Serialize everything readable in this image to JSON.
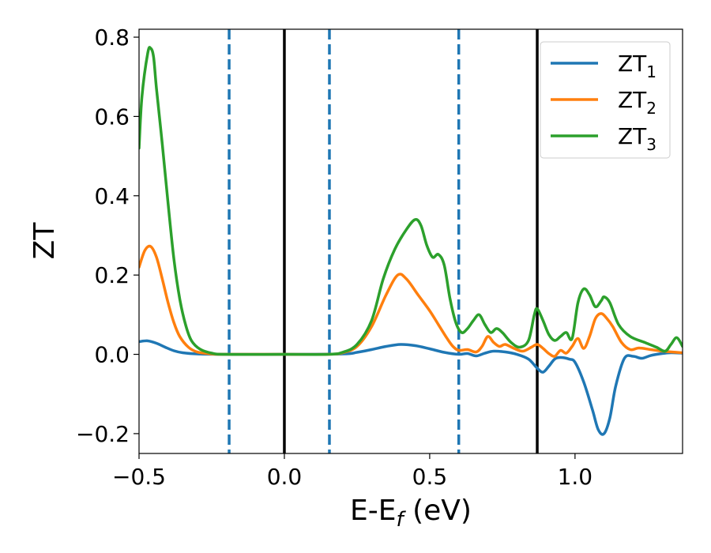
{
  "chart_data": {
    "type": "line",
    "xlabel": "E-E",
    "xlabel_sub": "f",
    "xlabel_unit": " (eV)",
    "ylabel": "ZT",
    "xlim": [
      -0.5,
      1.37
    ],
    "ylim": [
      -0.25,
      0.82
    ],
    "xticks": [
      -0.5,
      0.0,
      0.5,
      1.0
    ],
    "xtick_labels": [
      "−0.5",
      "0.0",
      "0.5",
      "1.0"
    ],
    "yticks": [
      -0.2,
      0.0,
      0.2,
      0.4,
      0.6,
      0.8
    ],
    "ytick_labels": [
      "−0.2",
      "0.0",
      "0.2",
      "0.4",
      "0.6",
      "0.8"
    ],
    "grid": false,
    "legend_position": "top-right",
    "vlines": [
      {
        "x": -0.19,
        "style": "dashed",
        "color": "#1f77b4"
      },
      {
        "x": 0.0,
        "style": "solid",
        "color": "#000000"
      },
      {
        "x": 0.155,
        "style": "dashed",
        "color": "#1f77b4"
      },
      {
        "x": 0.6,
        "style": "dashed",
        "color": "#1f77b4"
      },
      {
        "x": 0.87,
        "style": "solid",
        "color": "#000000"
      }
    ],
    "series": [
      {
        "name": "ZT",
        "name_sub": "1",
        "color": "#1f77b4",
        "points": [
          [
            -0.5,
            0.032
          ],
          [
            -0.47,
            0.034
          ],
          [
            -0.44,
            0.028
          ],
          [
            -0.41,
            0.018
          ],
          [
            -0.38,
            0.009
          ],
          [
            -0.35,
            0.004
          ],
          [
            -0.3,
            0.001
          ],
          [
            -0.2,
            0.0
          ],
          [
            0.0,
            0.0
          ],
          [
            0.2,
            0.001
          ],
          [
            0.25,
            0.005
          ],
          [
            0.3,
            0.012
          ],
          [
            0.35,
            0.02
          ],
          [
            0.4,
            0.025
          ],
          [
            0.45,
            0.022
          ],
          [
            0.5,
            0.014
          ],
          [
            0.55,
            0.005
          ],
          [
            0.6,
            0.0
          ],
          [
            0.63,
            0.002
          ],
          [
            0.66,
            -0.004
          ],
          [
            0.69,
            0.003
          ],
          [
            0.72,
            0.008
          ],
          [
            0.76,
            0.006
          ],
          [
            0.8,
            0.0
          ],
          [
            0.84,
            -0.012
          ],
          [
            0.87,
            -0.035
          ],
          [
            0.89,
            -0.045
          ],
          [
            0.91,
            -0.03
          ],
          [
            0.93,
            -0.012
          ],
          [
            0.95,
            -0.008
          ],
          [
            0.98,
            -0.012
          ],
          [
            1.0,
            -0.02
          ],
          [
            1.03,
            -0.07
          ],
          [
            1.06,
            -0.14
          ],
          [
            1.08,
            -0.19
          ],
          [
            1.1,
            -0.2
          ],
          [
            1.12,
            -0.16
          ],
          [
            1.14,
            -0.08
          ],
          [
            1.17,
            -0.01
          ],
          [
            1.2,
            -0.005
          ],
          [
            1.23,
            -0.01
          ],
          [
            1.26,
            -0.003
          ],
          [
            1.3,
            0.002
          ],
          [
            1.33,
            0.004
          ],
          [
            1.37,
            0.003
          ]
        ]
      },
      {
        "name": "ZT",
        "name_sub": "2",
        "color": "#ff7f0e",
        "points": [
          [
            -0.5,
            0.22
          ],
          [
            -0.48,
            0.262
          ],
          [
            -0.46,
            0.272
          ],
          [
            -0.44,
            0.245
          ],
          [
            -0.42,
            0.19
          ],
          [
            -0.4,
            0.13
          ],
          [
            -0.38,
            0.08
          ],
          [
            -0.36,
            0.045
          ],
          [
            -0.33,
            0.018
          ],
          [
            -0.3,
            0.006
          ],
          [
            -0.25,
            0.001
          ],
          [
            -0.2,
            0.0
          ],
          [
            0.0,
            0.0
          ],
          [
            0.15,
            0.0
          ],
          [
            0.2,
            0.004
          ],
          [
            0.25,
            0.02
          ],
          [
            0.3,
            0.07
          ],
          [
            0.35,
            0.15
          ],
          [
            0.39,
            0.2
          ],
          [
            0.42,
            0.19
          ],
          [
            0.46,
            0.15
          ],
          [
            0.5,
            0.11
          ],
          [
            0.53,
            0.075
          ],
          [
            0.56,
            0.04
          ],
          [
            0.58,
            0.02
          ],
          [
            0.6,
            0.01
          ],
          [
            0.63,
            0.012
          ],
          [
            0.66,
            0.006
          ],
          [
            0.68,
            0.02
          ],
          [
            0.7,
            0.045
          ],
          [
            0.72,
            0.03
          ],
          [
            0.74,
            0.02
          ],
          [
            0.76,
            0.025
          ],
          [
            0.79,
            0.015
          ],
          [
            0.82,
            0.008
          ],
          [
            0.85,
            0.018
          ],
          [
            0.87,
            0.025
          ],
          [
            0.89,
            0.015
          ],
          [
            0.91,
            0.002
          ],
          [
            0.93,
            -0.005
          ],
          [
            0.95,
            0.01
          ],
          [
            0.97,
            0.003
          ],
          [
            0.99,
            0.02
          ],
          [
            1.01,
            0.04
          ],
          [
            1.03,
            0.015
          ],
          [
            1.05,
            0.045
          ],
          [
            1.07,
            0.09
          ],
          [
            1.09,
            0.103
          ],
          [
            1.11,
            0.09
          ],
          [
            1.13,
            0.07
          ],
          [
            1.16,
            0.03
          ],
          [
            1.19,
            0.012
          ],
          [
            1.22,
            0.016
          ],
          [
            1.26,
            0.012
          ],
          [
            1.3,
            0.008
          ],
          [
            1.35,
            0.005
          ],
          [
            1.37,
            0.004
          ]
        ]
      },
      {
        "name": "ZT",
        "name_sub": "3",
        "color": "#2ca02c",
        "points": [
          [
            -0.5,
            0.52
          ],
          [
            -0.49,
            0.65
          ],
          [
            -0.47,
            0.76
          ],
          [
            -0.46,
            0.772
          ],
          [
            -0.45,
            0.75
          ],
          [
            -0.44,
            0.67
          ],
          [
            -0.42,
            0.53
          ],
          [
            -0.4,
            0.38
          ],
          [
            -0.38,
            0.24
          ],
          [
            -0.36,
            0.14
          ],
          [
            -0.34,
            0.075
          ],
          [
            -0.32,
            0.035
          ],
          [
            -0.29,
            0.013
          ],
          [
            -0.25,
            0.003
          ],
          [
            -0.2,
            0.0
          ],
          [
            0.0,
            0.0
          ],
          [
            0.15,
            0.0
          ],
          [
            0.2,
            0.005
          ],
          [
            0.25,
            0.025
          ],
          [
            0.3,
            0.085
          ],
          [
            0.34,
            0.19
          ],
          [
            0.38,
            0.265
          ],
          [
            0.42,
            0.315
          ],
          [
            0.45,
            0.34
          ],
          [
            0.47,
            0.325
          ],
          [
            0.49,
            0.275
          ],
          [
            0.51,
            0.245
          ],
          [
            0.53,
            0.252
          ],
          [
            0.55,
            0.225
          ],
          [
            0.57,
            0.14
          ],
          [
            0.59,
            0.08
          ],
          [
            0.61,
            0.055
          ],
          [
            0.63,
            0.065
          ],
          [
            0.65,
            0.085
          ],
          [
            0.67,
            0.1
          ],
          [
            0.69,
            0.075
          ],
          [
            0.71,
            0.055
          ],
          [
            0.73,
            0.065
          ],
          [
            0.75,
            0.055
          ],
          [
            0.78,
            0.03
          ],
          [
            0.81,
            0.018
          ],
          [
            0.84,
            0.035
          ],
          [
            0.86,
            0.1
          ],
          [
            0.87,
            0.115
          ],
          [
            0.89,
            0.085
          ],
          [
            0.91,
            0.05
          ],
          [
            0.93,
            0.035
          ],
          [
            0.95,
            0.045
          ],
          [
            0.97,
            0.055
          ],
          [
            0.99,
            0.04
          ],
          [
            1.01,
            0.13
          ],
          [
            1.03,
            0.165
          ],
          [
            1.05,
            0.15
          ],
          [
            1.07,
            0.12
          ],
          [
            1.09,
            0.135
          ],
          [
            1.1,
            0.145
          ],
          [
            1.12,
            0.13
          ],
          [
            1.15,
            0.075
          ],
          [
            1.19,
            0.045
          ],
          [
            1.24,
            0.03
          ],
          [
            1.28,
            0.018
          ],
          [
            1.31,
            0.008
          ],
          [
            1.33,
            0.025
          ],
          [
            1.35,
            0.042
          ],
          [
            1.37,
            0.02
          ]
        ]
      }
    ]
  }
}
